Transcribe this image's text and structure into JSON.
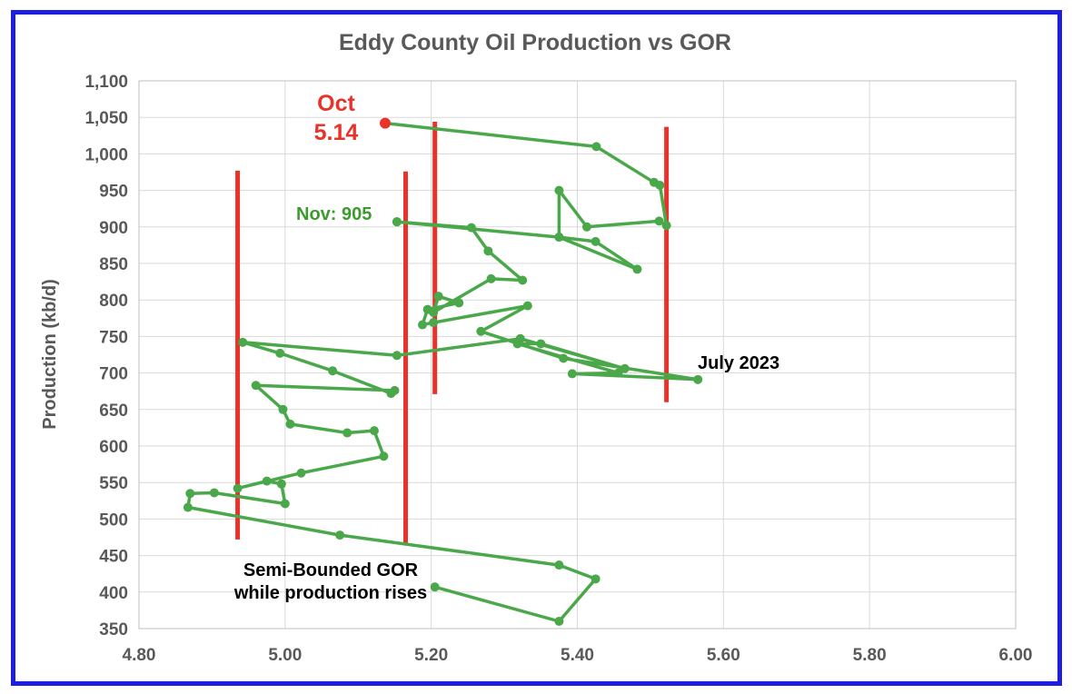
{
  "chart_data": {
    "type": "scatter",
    "title": "Eddy County Oil Production vs GOR",
    "xlabel": "",
    "ylabel": "Production (kb/d)",
    "xlim": [
      4.8,
      6.0
    ],
    "ylim": [
      350,
      1100
    ],
    "x_ticks": [
      "4.80",
      "5.00",
      "5.20",
      "5.40",
      "5.60",
      "5.80",
      "6.00"
    ],
    "y_ticks": [
      "350",
      "400",
      "450",
      "500",
      "550",
      "600",
      "650",
      "700",
      "750",
      "800",
      "850",
      "900",
      "950",
      "1,000",
      "1,050",
      "1,100"
    ],
    "grid": true,
    "series_color": "#4aa84a",
    "series": [
      {
        "points": [
          [
            5.205,
            407
          ],
          [
            5.375,
            360
          ],
          [
            5.425,
            418
          ],
          [
            5.375,
            437
          ],
          [
            5.075,
            478
          ],
          [
            4.867,
            516
          ],
          [
            4.87,
            535
          ],
          [
            4.903,
            536
          ],
          [
            5.0,
            521
          ],
          [
            4.995,
            548
          ],
          [
            4.975,
            552
          ],
          [
            4.935,
            542
          ],
          [
            5.022,
            563
          ],
          [
            5.135,
            586
          ],
          [
            5.122,
            621
          ],
          [
            5.085,
            618
          ],
          [
            5.007,
            630
          ],
          [
            4.997,
            650
          ],
          [
            4.96,
            683
          ],
          [
            5.15,
            676
          ],
          [
            5.145,
            672
          ],
          [
            5.065,
            703
          ],
          [
            4.993,
            727
          ],
          [
            4.942,
            742
          ],
          [
            5.153,
            724
          ],
          [
            5.322,
            747
          ],
          [
            5.465,
            706
          ],
          [
            5.35,
            740
          ],
          [
            5.318,
            740
          ],
          [
            5.456,
            700
          ],
          [
            5.393,
            699
          ],
          [
            5.565,
            691
          ],
          [
            5.381,
            720
          ],
          [
            5.268,
            757
          ],
          [
            5.332,
            792
          ],
          [
            5.203,
            769
          ],
          [
            5.188,
            766
          ],
          [
            5.195,
            787
          ],
          [
            5.238,
            796
          ],
          [
            5.21,
            805
          ],
          [
            5.203,
            783
          ],
          [
            5.282,
            829
          ],
          [
            5.325,
            827
          ],
          [
            5.278,
            867
          ],
          [
            5.255,
            899
          ],
          [
            5.153,
            907
          ]
        ]
      },
      {
        "points": [
          [
            5.153,
            907
          ],
          [
            5.375,
            886
          ],
          [
            5.425,
            880
          ],
          [
            5.482,
            842
          ],
          [
            5.375,
            886
          ],
          [
            5.375,
            950
          ],
          [
            5.413,
            900
          ],
          [
            5.512,
            908
          ],
          [
            5.522,
            902
          ],
          [
            5.513,
            957
          ],
          [
            5.505,
            961
          ],
          [
            5.426,
            1010
          ],
          [
            5.137,
            1042
          ]
        ]
      }
    ],
    "highlight_point": {
      "x": 5.137,
      "y": 1042,
      "color": "#e8322a"
    },
    "reference_lines": [
      {
        "x": 4.935,
        "y_from": 472,
        "y_to": 977
      },
      {
        "x": 5.165,
        "y_from": 465,
        "y_to": 976
      },
      {
        "x": 5.205,
        "y_from": 671,
        "y_to": 1044
      },
      {
        "x": 5.522,
        "y_from": 660,
        "y_to": 1037
      }
    ],
    "reference_line_color": "#e8322a",
    "annotations": {
      "oct_label": "Oct",
      "oct_value": "5.14",
      "nov_label": "Nov: 905",
      "july_label": "July 2023",
      "semi_bounded_line1": "Semi-Bounded GOR",
      "semi_bounded_line2": "while production rises"
    },
    "annotation_colors": {
      "oct": "#e8322a",
      "nov": "#3c9a2e",
      "july": "#000000",
      "semi": "#000000"
    }
  }
}
